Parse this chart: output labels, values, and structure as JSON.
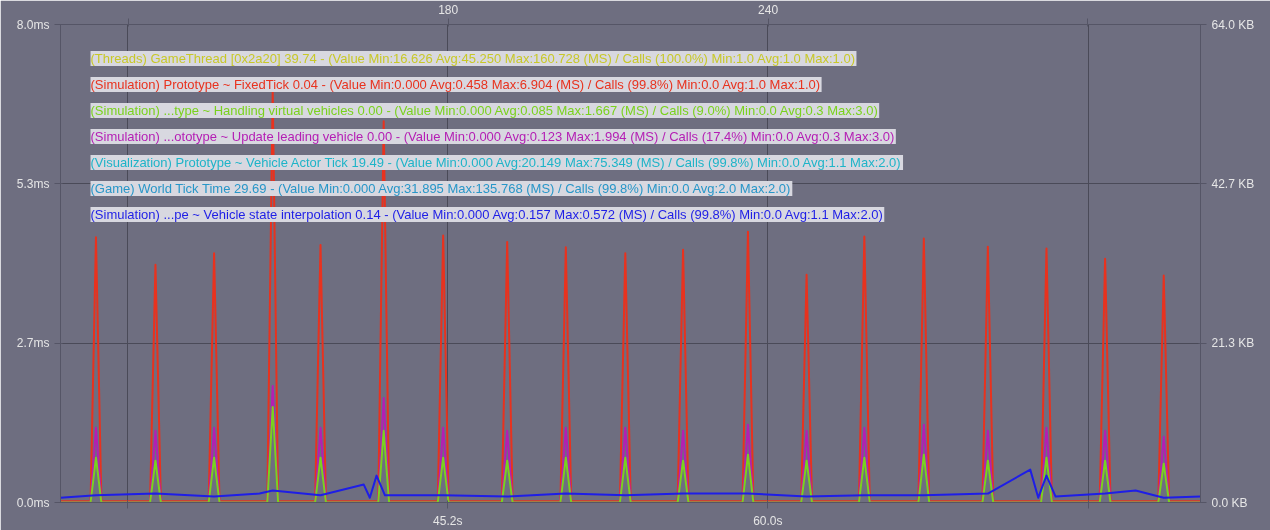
{
  "chart_data": {
    "type": "line",
    "x": [
      27.3,
      28.69,
      28.94,
      29.19,
      31.44,
      31.69,
      31.94,
      34.15,
      34.4,
      34.65,
      36.86,
      37.11,
      37.36,
      39.07,
      39.32,
      39.57,
      41.99,
      42.24,
      42.49,
      44.74,
      44.99,
      45.24,
      47.7,
      47.95,
      48.2,
      50.41,
      50.66,
      50.91,
      53.16,
      53.41,
      53.66,
      55.83,
      56.08,
      56.33,
      58.83,
      59.08,
      59.33,
      61.54,
      61.79,
      62.04,
      64.21,
      64.46,
      64.71,
      66.96,
      67.21,
      67.46,
      69.92,
      70.17,
      70.42,
      72.63,
      72.88,
      73.13,
      75.34,
      75.59,
      75.84,
      78.05,
      78.3,
      78.55,
      80.0
    ],
    "series": [
      {
        "name": "(Threads) GameThread [0x2a20] 39.74 - (Value Min:16.626 Avg:45.250 Max:160.728 (MS) / Calls (100.0%) Min:1.0 Avg:1.0 Max:1.0)",
        "color": "#c8c828",
        "values": [
          null,
          null,
          null,
          null,
          null,
          null,
          null,
          null,
          null,
          null,
          null,
          null,
          null,
          null,
          null,
          null,
          null,
          null,
          null,
          null,
          null,
          null,
          null,
          null,
          null,
          null,
          null,
          null,
          null,
          null,
          null,
          null,
          null,
          null,
          null,
          null,
          null,
          null,
          null,
          null,
          null,
          null,
          null,
          null,
          null,
          null,
          null,
          null,
          null,
          null,
          null,
          null,
          null,
          null,
          null,
          null,
          null,
          null,
          null
        ]
      },
      {
        "name": "(Simulation) Prototype ~ FixedTick 0.04 - (Value Min:0.000 Avg:0.458 Max:6.904 (MS) / Calls (99.8%) Min:0.0 Avg:1.0 Max:1.0)",
        "color": "#e8321e",
        "values": [
          0.02,
          0.02,
          4.44,
          0.02,
          0.02,
          3.98,
          0.02,
          0.02,
          4.17,
          0.02,
          0.02,
          6.89,
          0.02,
          0.02,
          4.31,
          0.02,
          0.02,
          6.38,
          0.02,
          0.02,
          4.47,
          0.02,
          0.02,
          4.36,
          0.02,
          0.02,
          4.27,
          0.02,
          0.02,
          4.17,
          0.02,
          0.02,
          4.23,
          0.02,
          0.02,
          4.53,
          0.02,
          0.02,
          3.81,
          0.02,
          0.02,
          4.45,
          0.02,
          0.02,
          4.42,
          0.02,
          0.02,
          4.28,
          0.02,
          0.02,
          4.25,
          0.02,
          0.02,
          4.08,
          0.02,
          0.02,
          3.8,
          0.02,
          0.02
        ]
      },
      {
        "name": "(Simulation) ...type ~ Handling virtual vehicles 0.00 - (Value Min:0.000 Avg:0.085 Max:1.667 (MS) / Calls (9.0%) Min:0.0 Avg:0.3 Max:3.0)",
        "color": "#7ad21e",
        "values": [
          0,
          0,
          0.75,
          0,
          0,
          0.7,
          0,
          0,
          0.75,
          0,
          0,
          1.6,
          0,
          0,
          0.75,
          0,
          0,
          1.2,
          0,
          0,
          0.75,
          0,
          0,
          0.7,
          0,
          0,
          0.75,
          0,
          0,
          0.75,
          0,
          0,
          0.7,
          0,
          0,
          0.8,
          0,
          0,
          0.7,
          0,
          0,
          0.75,
          0,
          0,
          0.8,
          0,
          0,
          0.7,
          0,
          0,
          0.75,
          0,
          0,
          0.7,
          0,
          0,
          0.65,
          0,
          0
        ]
      },
      {
        "name": "(Simulation) ...ototype ~ Update leading vehicle 0.00 - (Value Min:0.000 Avg:0.123 Max:1.994 (MS) / Calls (17.4%) Min:0.0 Avg:0.3 Max:3.0)",
        "color": "#b41eb4",
        "values": [
          0,
          0,
          1.25,
          0,
          0,
          1.2,
          0,
          0,
          1.25,
          0,
          0,
          1.95,
          0,
          0,
          1.25,
          0,
          0,
          1.75,
          0,
          0,
          1.25,
          0,
          0,
          1.2,
          0,
          0,
          1.25,
          0,
          0,
          1.25,
          0,
          0,
          1.2,
          0,
          0,
          1.3,
          0,
          0,
          1.2,
          0,
          0,
          1.25,
          0,
          0,
          1.3,
          0,
          0,
          1.2,
          0,
          0,
          1.25,
          0,
          0,
          1.2,
          0,
          0,
          1.1,
          0,
          0
        ]
      },
      {
        "name": "(Visualization) Prototype ~ Vehicle Actor Tick 19.49 - (Value Min:0.000 Avg:20.149 Max:75.349 (MS) / Calls (99.8%) Min:0.0 Avg:1.1 Max:2.0)",
        "color": "#1eb4c8",
        "values": [
          null,
          null,
          null,
          null,
          null,
          null,
          null,
          null,
          null,
          null,
          null,
          null,
          null,
          null,
          null,
          null,
          null,
          null,
          null,
          null,
          null,
          null,
          null,
          null,
          null,
          null,
          null,
          null,
          null,
          null,
          null,
          null,
          null,
          null,
          null,
          null,
          null,
          null,
          null,
          null,
          null,
          null,
          null,
          null,
          null,
          null,
          null,
          null,
          null,
          null,
          null,
          null,
          null,
          null,
          null,
          null,
          null,
          null,
          null
        ]
      },
      {
        "name": "(Game) World Tick Time 29.69 - (Value Min:0.000 Avg:31.895 Max:135.768 (MS) / Calls (99.8%) Min:0.0 Avg:2.0 Max:2.0)",
        "color": "#2896c8",
        "values": [
          null,
          null,
          null,
          null,
          null,
          null,
          null,
          null,
          null,
          null,
          null,
          null,
          null,
          null,
          null,
          null,
          null,
          null,
          null,
          null,
          null,
          null,
          null,
          null,
          null,
          null,
          null,
          null,
          null,
          null,
          null,
          null,
          null,
          null,
          null,
          null,
          null,
          null,
          null,
          null,
          null,
          null,
          null,
          null,
          null,
          null,
          null,
          null,
          null,
          null,
          null,
          null,
          null,
          null,
          null,
          null,
          null,
          null,
          null
        ]
      },
      {
        "name": "(Simulation) ...pe ~ Vehicle state interpolation 0.14 - (Value Min:0.000 Avg:0.157 Max:0.572 (MS) / Calls (99.8%) Min:0.0 Avg:1.1 Max:2.0)",
        "color": "#1e1ee6",
        "x": [
          27.3,
          28.94,
          31.69,
          34.4,
          36.5,
          37.11,
          39.32,
          41.32,
          41.6,
          41.91,
          42.3,
          44.99,
          47.95,
          50.66,
          53.41,
          56.08,
          59.08,
          61.79,
          64.46,
          67.21,
          70.17,
          72.13,
          72.5,
          72.88,
          73.3,
          75.59,
          77.0,
          78.3,
          80.0
        ],
        "values": [
          0.08,
          0.12,
          0.15,
          0.1,
          0.15,
          0.2,
          0.12,
          0.3,
          0.08,
          0.45,
          0.12,
          0.12,
          0.1,
          0.15,
          0.12,
          0.15,
          0.15,
          0.1,
          0.12,
          0.12,
          0.15,
          0.55,
          0.08,
          0.45,
          0.1,
          0.15,
          0.2,
          0.08,
          0.1
        ]
      }
    ],
    "xlim": [
      27.3,
      80.0
    ],
    "xticks": [
      {
        "value": 30.4,
        "label": null
      },
      {
        "value": 45.2,
        "label": "45.2s"
      },
      {
        "value": 60.0,
        "label": "60.0s"
      },
      {
        "value": 74.8,
        "label": null
      }
    ],
    "x2lim": [
      107.3,
      321.1
    ],
    "x2ticks": [
      {
        "value": 120,
        "label": null
      },
      180,
      240,
      {
        "value": 300,
        "label": null
      }
    ],
    "ylim": [
      0,
      8.0
    ],
    "yticks": [
      {
        "value": 0,
        "label": "0.0ms"
      },
      {
        "value": 2.667,
        "label": "2.7ms"
      },
      {
        "value": 5.333,
        "label": "5.3ms"
      },
      {
        "value": 8.0,
        "label": "8.0ms"
      }
    ],
    "y2lim": [
      0,
      64.0
    ],
    "y2ticks": [
      {
        "value": 0,
        "label": "0.0 KB"
      },
      {
        "value": 21.333,
        "label": "21.3 KB"
      },
      {
        "value": 42.667,
        "label": "42.7 KB"
      },
      {
        "value": 64.0,
        "label": "64.0 KB"
      }
    ],
    "grid": true,
    "legend": "top left",
    "marker": "none",
    "line_style": "solid"
  }
}
